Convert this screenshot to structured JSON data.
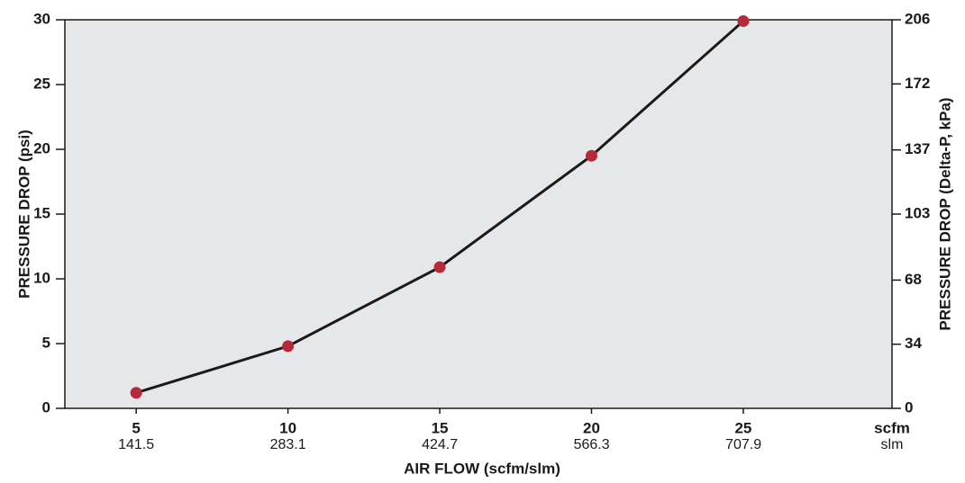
{
  "chart_data": {
    "type": "line",
    "ylabel": "PRESSURE DROP (psi)",
    "y2label": "PRESSURE DROP (Delta-P, kPa)",
    "xlabel": "AIR FLOW  (scfm/slm)",
    "x_unit": "scfm",
    "x2_unit": "slm",
    "x": [
      5,
      10,
      15,
      20,
      25
    ],
    "series": [
      {
        "color": "#b5293a",
        "line_color": "#1a1a1a",
        "values": [
          1.2,
          4.8,
          10.9,
          19.5,
          29.9
        ]
      }
    ],
    "xlim": [
      2.65,
      29.9
    ],
    "xticks": [
      5,
      10,
      15,
      20,
      25
    ],
    "x2lim": [
      75.0,
      846.5
    ],
    "x2ticks": [
      141.5,
      283.1,
      424.7,
      566.3,
      707.9
    ],
    "ylim": [
      0,
      30
    ],
    "yticks": [
      0,
      5,
      10,
      15,
      20,
      25,
      30
    ],
    "y2lim": [
      0,
      206
    ],
    "y2ticks": [
      0,
      34,
      68,
      103,
      137,
      172,
      206
    ],
    "plot_background": "#e6e7e9"
  }
}
